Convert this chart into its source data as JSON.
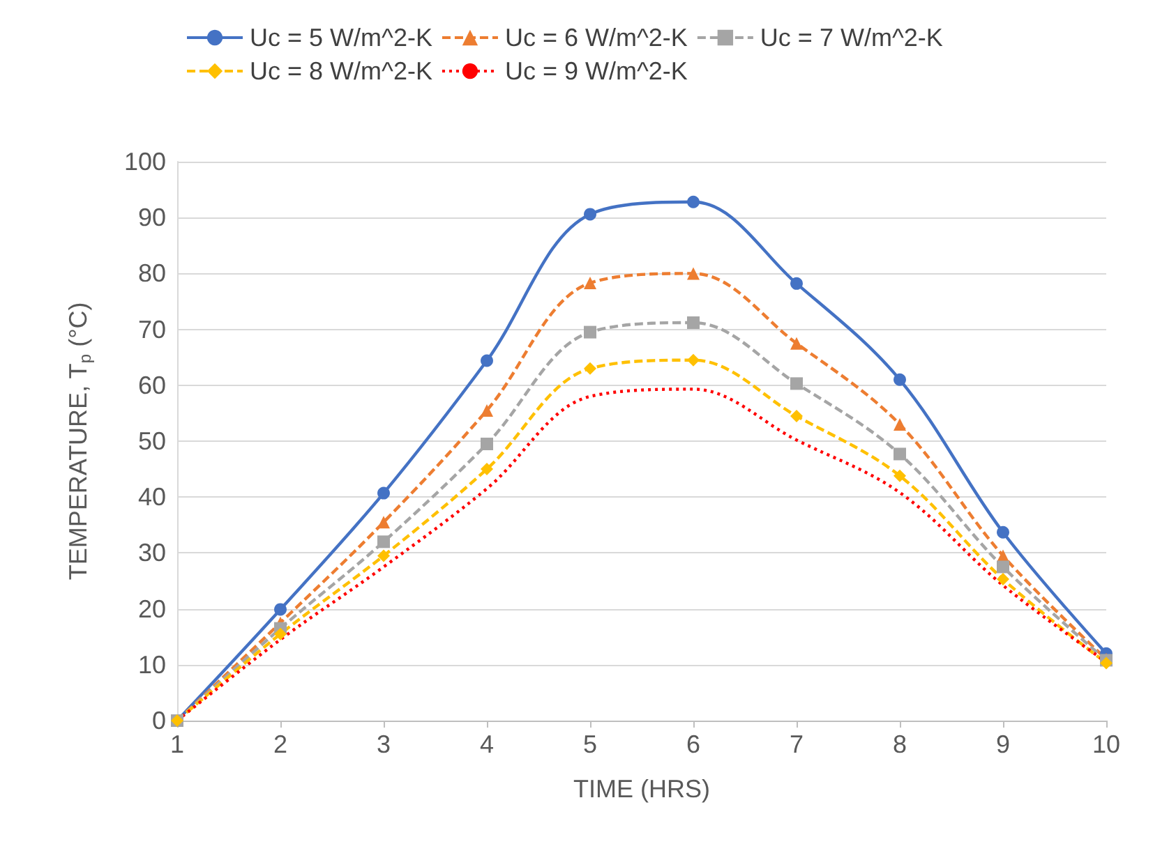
{
  "chart_data": {
    "type": "line",
    "xlabel": "TIME (HRS)",
    "ylabel": "TEMPERATURE, T$_{p}$ (°C)",
    "x": [
      1,
      2,
      3,
      4,
      5,
      6,
      7,
      8,
      9,
      10
    ],
    "series": [
      {
        "name": "Uc = 5 W/m^2-K",
        "color": "#4472c4",
        "marker": "circle",
        "line_style": "solid",
        "values": [
          0,
          19.9,
          40.7,
          64.4,
          90.6,
          92.8,
          78.2,
          61,
          33.7,
          12
        ]
      },
      {
        "name": "Uc = 6 W/m^2-K",
        "color": "#ed7d31",
        "marker": "triangle",
        "line_style": "dashed",
        "values": [
          0,
          17.5,
          35.5,
          55.5,
          78.3,
          80,
          67.5,
          53,
          29.5,
          11
        ]
      },
      {
        "name": "Uc = 7 W/m^2-K",
        "color": "#a5a5a5",
        "marker": "square",
        "line_style": "dashed",
        "values": [
          0,
          16.5,
          32,
          49.5,
          69.5,
          71.2,
          60.3,
          47.7,
          27.5,
          10.8
        ]
      },
      {
        "name": "Uc = 8 W/m^2-K",
        "color": "#ffc000",
        "marker": "diamond",
        "line_style": "dashed",
        "values": [
          0,
          15.5,
          29.5,
          45,
          63,
          64.5,
          54.5,
          43.8,
          25.3,
          10.3
        ]
      },
      {
        "name": "Uc = 9 W/m^2-K",
        "color": "#ff0000",
        "marker": "none",
        "line_style": "dotted",
        "values": [
          0,
          14.5,
          27.5,
          41.5,
          58,
          59.3,
          50.2,
          40.8,
          24.2,
          10.5
        ]
      }
    ],
    "xlim": [
      1,
      10
    ],
    "xticks": [
      1,
      2,
      3,
      4,
      5,
      6,
      7,
      8,
      9,
      10
    ],
    "ylim": [
      0,
      100
    ],
    "yticks": [
      0,
      10,
      20,
      30,
      40,
      50,
      60,
      70,
      80,
      90,
      100
    ],
    "grid": "y",
    "legend": "top"
  }
}
